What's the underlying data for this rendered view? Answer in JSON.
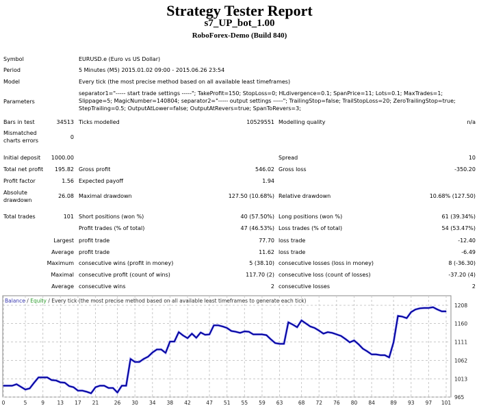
{
  "header": {
    "title": "Strategy Tester Report",
    "subtitle": "s7_UP_bot_1.00",
    "server": "RoboForex-Demo (Build 840)"
  },
  "info": {
    "symbol_label": "Symbol",
    "symbol": "EURUSD.e (Euro vs US Dollar)",
    "period_label": "Period",
    "period": "5 Minutes (M5) 2015.01.02 09:00 - 2015.06.26 23:54",
    "model_label": "Model",
    "model": "Every tick (the most precise method based on all available least timeframes)",
    "parameters_label": "Parameters",
    "parameters": "separator1=\"----- start trade settings -----\"; TakeProfit=150; StopLoss=0; HLdivergence=0.1; SpanPrice=11; Lots=0.1; MaxTrades=1; Slippage=5; MagicNumber=140804; separator2=\"----- output settings -----\"; TrailingStop=false; TrailStopLoss=20; ZeroTrailingStop=true; StepTrailing=0.5; OutputAtLower=false; OutputAtRevers=true; SpanToRevers=3;",
    "bars_label": "Bars in test",
    "bars": "34513",
    "ticks_label": "Ticks modelled",
    "ticks": "10529551",
    "quality_label": "Modelling quality",
    "quality": "n/a",
    "mismatched_label": "Mismatched charts errors",
    "mismatched": "0"
  },
  "results": {
    "initial_deposit_label": "Initial deposit",
    "initial_deposit": "1000.00",
    "spread_label": "Spread",
    "spread": "10",
    "net_profit_label": "Total net profit",
    "net_profit": "195.82",
    "gross_profit_label": "Gross profit",
    "gross_profit": "546.02",
    "gross_loss_label": "Gross loss",
    "gross_loss": "-350.20",
    "profit_factor_label": "Profit factor",
    "profit_factor": "1.56",
    "expected_payoff_label": "Expected payoff",
    "expected_payoff": "1.94",
    "abs_dd_label": "Absolute drawdown",
    "abs_dd": "26.08",
    "max_dd_label": "Maximal drawdown",
    "max_dd": "127.50 (10.68%)",
    "rel_dd_label": "Relative drawdown",
    "rel_dd": "10.68% (127.50)",
    "total_trades_label": "Total trades",
    "total_trades": "101",
    "short_label": "Short positions (won %)",
    "short": "40 (57.50%)",
    "long_label": "Long positions (won %)",
    "long": "61 (39.34%)",
    "profit_trades_label": "Profit trades (% of total)",
    "profit_trades": "47 (46.53%)",
    "loss_trades_label": "Loss trades (% of total)",
    "loss_trades": "54 (53.47%)",
    "largest_label": "Largest",
    "largest_profit_label": "profit trade",
    "largest_profit": "77.70",
    "largest_loss_label": "loss trade",
    "largest_loss": "-12.40",
    "average_label": "Average",
    "average_profit_label": "profit trade",
    "average_profit": "11.62",
    "average_loss_label": "loss trade",
    "average_loss": "-6.49",
    "maximum_label": "Maximum",
    "max_cons_wins_label": "consecutive wins (profit in money)",
    "max_cons_wins": "5 (38.10)",
    "max_cons_losses_label": "consecutive losses (loss in money)",
    "max_cons_losses": "8 (-36.30)",
    "maximal_label": "Maximal",
    "maximal_cons_profit_label": "consecutive profit (count of wins)",
    "maximal_cons_profit": "117.70 (2)",
    "maximal_cons_loss_label": "consecutive loss (count of losses)",
    "maximal_cons_loss": "-37.20 (4)",
    "avg_cons_label": "Average",
    "avg_cons_wins_label": "consecutive wins",
    "avg_cons_wins": "2",
    "avg_cons_losses_label": "consecutive losses",
    "avg_cons_losses": "2"
  },
  "chart_data": {
    "type": "line",
    "legend": {
      "balance": "Balance",
      "sep1": " / ",
      "equity": "Equity",
      "sep2": " / ",
      "model": "Every tick (the most precise method based on all available least timeframes to generate each tick)"
    },
    "colors": {
      "balance": "#00009c",
      "equity": "#2e9e2e",
      "grid": "#c8c8c8"
    },
    "xlim": [
      0,
      101
    ],
    "ylim": [
      965,
      1208
    ],
    "x_ticks": [
      "0",
      "5",
      "9",
      "13",
      "17",
      "21",
      "26",
      "30",
      "34",
      "38",
      "42",
      "47",
      "51",
      "55",
      "59",
      "63",
      "68",
      "72",
      "76",
      "80",
      "84",
      "89",
      "93",
      "97",
      "101"
    ],
    "y_ticks": [
      "1208",
      "1160",
      "1111",
      "1062",
      "1013",
      "965"
    ],
    "grid": true,
    "series": [
      {
        "name": "Balance",
        "values": [
          995,
          995,
          995,
          999,
          992,
          985,
          988,
          1003,
          1017,
          1017,
          1017,
          1010,
          1009,
          1004,
          1003,
          994,
          991,
          982,
          982,
          979,
          975,
          991,
          995,
          995,
          989,
          989,
          977,
          995,
          995,
          1066,
          1058,
          1058,
          1066,
          1072,
          1083,
          1091,
          1091,
          1082,
          1112,
          1112,
          1137,
          1128,
          1121,
          1133,
          1122,
          1136,
          1130,
          1131,
          1155,
          1155,
          1152,
          1148,
          1140,
          1138,
          1135,
          1139,
          1138,
          1131,
          1131,
          1131,
          1129,
          1118,
          1108,
          1106,
          1106,
          1163,
          1157,
          1150,
          1168,
          1160,
          1152,
          1148,
          1141,
          1133,
          1137,
          1135,
          1131,
          1127,
          1119,
          1110,
          1115,
          1105,
          1093,
          1086,
          1078,
          1078,
          1076,
          1076,
          1070,
          1110,
          1180,
          1178,
          1174,
          1190,
          1197,
          1200,
          1201,
          1201,
          1203,
          1197,
          1192,
          1192
        ]
      }
    ]
  }
}
